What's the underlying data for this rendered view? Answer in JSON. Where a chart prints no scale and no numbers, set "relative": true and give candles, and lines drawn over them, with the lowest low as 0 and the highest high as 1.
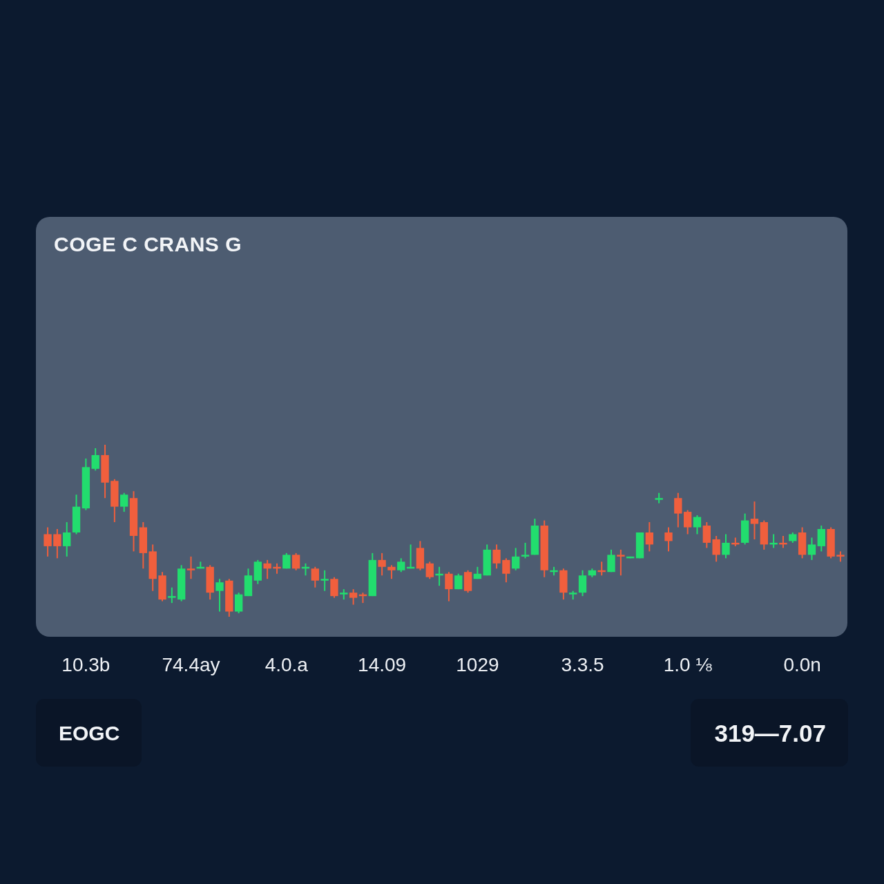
{
  "chart_data": {
    "type": "candlestick",
    "title": "COGE C CRANS G",
    "relative": true,
    "categories": [
      null,
      null,
      null,
      null,
      "10.3b",
      null,
      null,
      null,
      null,
      null,
      null,
      null,
      null,
      null,
      null,
      "74.4ay",
      null,
      null,
      null,
      null,
      null,
      null,
      null,
      null,
      null,
      "4.0.a",
      null,
      null,
      null,
      null,
      null,
      null,
      null,
      null,
      null,
      "14.09",
      null,
      null,
      null,
      null,
      null,
      null,
      null,
      null,
      null,
      "1029",
      null,
      null,
      null,
      null,
      null,
      null,
      null,
      null,
      null,
      null,
      "3.3.5",
      null,
      null,
      null,
      null,
      null,
      null,
      null,
      null,
      null,
      null,
      "1.0 ⅛",
      null,
      null,
      null,
      null,
      null,
      null,
      null,
      null,
      null,
      null,
      null,
      "0.0n",
      null,
      null,
      null,
      null
    ],
    "ohlc": [
      [
        0.48,
        0.52,
        0.35,
        0.41
      ],
      [
        0.48,
        0.51,
        0.34,
        0.41
      ],
      [
        0.41,
        0.55,
        0.35,
        0.49
      ],
      [
        0.49,
        0.71,
        0.48,
        0.64
      ],
      [
        0.63,
        0.92,
        0.62,
        0.87
      ],
      [
        0.86,
        0.98,
        0.85,
        0.94
      ],
      [
        0.94,
        1,
        0.69,
        0.78
      ],
      [
        0.79,
        0.8,
        0.55,
        0.64
      ],
      [
        0.64,
        0.72,
        0.61,
        0.71
      ],
      [
        0.69,
        0.73,
        0.38,
        0.47
      ],
      [
        0.52,
        0.55,
        0.28,
        0.37
      ],
      [
        0.38,
        0.42,
        0.15,
        0.22
      ],
      [
        0.24,
        0.26,
        0.09,
        0.1
      ],
      [
        0.11,
        0.17,
        0.08,
        0.12
      ],
      [
        0.1,
        0.3,
        0.09,
        0.28
      ],
      [
        0.28,
        0.35,
        0.22,
        0.27
      ],
      [
        0.28,
        0.32,
        0.28,
        0.29
      ],
      [
        0.29,
        0.3,
        0.1,
        0.14
      ],
      [
        0.15,
        0.22,
        0.03,
        0.2
      ],
      [
        0.21,
        0.22,
        0,
        0.03
      ],
      [
        0.03,
        0.14,
        0.02,
        0.13
      ],
      [
        0.12,
        0.28,
        0.12,
        0.24
      ],
      [
        0.21,
        0.33,
        0.19,
        0.32
      ],
      [
        0.31,
        0.33,
        0.22,
        0.28
      ],
      [
        0.29,
        0.31,
        0.25,
        0.28
      ],
      [
        0.28,
        0.37,
        0.28,
        0.36
      ],
      [
        0.36,
        0.37,
        0.27,
        0.28
      ],
      [
        0.28,
        0.31,
        0.24,
        0.29
      ],
      [
        0.28,
        0.29,
        0.17,
        0.21
      ],
      [
        0.21,
        0.27,
        0.15,
        0.22
      ],
      [
        0.22,
        0.23,
        0.11,
        0.12
      ],
      [
        0.13,
        0.16,
        0.1,
        0.14
      ],
      [
        0.14,
        0.16,
        0.07,
        0.11
      ],
      [
        0.13,
        0.14,
        0.08,
        0.12
      ],
      [
        0.12,
        0.37,
        0.12,
        0.33
      ],
      [
        0.33,
        0.37,
        0.24,
        0.29
      ],
      [
        0.29,
        0.3,
        0.22,
        0.27
      ],
      [
        0.27,
        0.34,
        0.26,
        0.32
      ],
      [
        0.28,
        0.42,
        0.28,
        0.29
      ],
      [
        0.4,
        0.44,
        0.27,
        0.28
      ],
      [
        0.31,
        0.32,
        0.22,
        0.23
      ],
      [
        0.24,
        0.29,
        0.18,
        0.25
      ],
      [
        0.25,
        0.26,
        0.09,
        0.16
      ],
      [
        0.16,
        0.25,
        0.16,
        0.24
      ],
      [
        0.26,
        0.27,
        0.14,
        0.15
      ],
      [
        0.22,
        0.29,
        0.22,
        0.25
      ],
      [
        0.24,
        0.42,
        0.24,
        0.39
      ],
      [
        0.39,
        0.42,
        0.28,
        0.31
      ],
      [
        0.33,
        0.34,
        0.2,
        0.25
      ],
      [
        0.28,
        0.4,
        0.27,
        0.35
      ],
      [
        0.35,
        0.43,
        0.34,
        0.36
      ],
      [
        0.36,
        0.57,
        0.36,
        0.53
      ],
      [
        0.53,
        0.56,
        0.23,
        0.27
      ],
      [
        0.26,
        0.29,
        0.24,
        0.27
      ],
      [
        0.27,
        0.28,
        0.1,
        0.14
      ],
      [
        0.13,
        0.15,
        0.1,
        0.14
      ],
      [
        0.14,
        0.27,
        0.12,
        0.24
      ],
      [
        0.24,
        0.28,
        0.23,
        0.27
      ],
      [
        0.27,
        0.32,
        0.24,
        0.26
      ],
      [
        0.26,
        0.39,
        0.26,
        0.36
      ],
      [
        0.36,
        0.39,
        0.24,
        0.35
      ],
      [
        0.34,
        0.35,
        0.34,
        0.35
      ],
      [
        0.34,
        0.49,
        0.34,
        0.49
      ],
      [
        0.49,
        0.55,
        0.38,
        0.42
      ],
      [
        0.68,
        0.72,
        0.66,
        0.69
      ],
      [
        0.49,
        0.52,
        0.38,
        0.44
      ],
      [
        0.69,
        0.72,
        0.52,
        0.6
      ],
      [
        0.61,
        0.62,
        0.48,
        0.52
      ],
      [
        0.52,
        0.59,
        0.48,
        0.58
      ],
      [
        0.53,
        0.55,
        0.4,
        0.43
      ],
      [
        0.45,
        0.47,
        0.32,
        0.36
      ],
      [
        0.36,
        0.48,
        0.34,
        0.43
      ],
      [
        0.43,
        0.46,
        0.41,
        0.42
      ],
      [
        0.43,
        0.6,
        0.42,
        0.56
      ],
      [
        0.57,
        0.67,
        0.45,
        0.54
      ],
      [
        0.55,
        0.56,
        0.39,
        0.42
      ],
      [
        0.42,
        0.48,
        0.4,
        0.43
      ],
      [
        0.43,
        0.47,
        0.4,
        0.42
      ],
      [
        0.44,
        0.49,
        0.43,
        0.48
      ],
      [
        0.49,
        0.52,
        0.34,
        0.36
      ],
      [
        0.36,
        0.46,
        0.33,
        0.42
      ],
      [
        0.41,
        0.53,
        0.38,
        0.51
      ],
      [
        0.51,
        0.52,
        0.34,
        0.35
      ],
      [
        0.36,
        0.38,
        0.32,
        0.35
      ]
    ],
    "colors": [
      "#f05f3d",
      "#f05f3d",
      "#22dd6e",
      "#22dd6e",
      "#22dd6e",
      "#22dd6e",
      "#f05f3d",
      "#f05f3d",
      "#22dd6e",
      "#f05f3d",
      "#f05f3d",
      "#f05f3d",
      "#f05f3d",
      "#22dd6e",
      "#22dd6e",
      "#f05f3d",
      "#22dd6e",
      "#f05f3d",
      "#22dd6e",
      "#f05f3d",
      "#22dd6e",
      "#22dd6e",
      "#22dd6e",
      "#f05f3d",
      "#f05f3d",
      "#22dd6e",
      "#f05f3d",
      "#22dd6e",
      "#f05f3d",
      "#22dd6e",
      "#f05f3d",
      "#22dd6e",
      "#f05f3d",
      "#f05f3d",
      "#22dd6e",
      "#f05f3d",
      "#f05f3d",
      "#22dd6e",
      "#22dd6e",
      "#f05f3d",
      "#f05f3d",
      "#22dd6e",
      "#f05f3d",
      "#22dd6e",
      "#f05f3d",
      "#22dd6e",
      "#22dd6e",
      "#f05f3d",
      "#f05f3d",
      "#22dd6e",
      "#22dd6e",
      "#22dd6e",
      "#f05f3d",
      "#22dd6e",
      "#f05f3d",
      "#22dd6e",
      "#22dd6e",
      "#22dd6e",
      "#f05f3d",
      "#22dd6e",
      "#f05f3d",
      "#22dd6e",
      "#22dd6e",
      "#f05f3d",
      "#22dd6e",
      "#f05f3d",
      "#f05f3d",
      "#f05f3d",
      "#22dd6e",
      "#f05f3d",
      "#f05f3d",
      "#22dd6e",
      "#f05f3d",
      "#22dd6e",
      "#f05f3d",
      "#f05f3d",
      "#22dd6e",
      "#f05f3d",
      "#22dd6e",
      "#f05f3d",
      "#22dd6e",
      "#22dd6e",
      "#f05f3d",
      "#f05f3d"
    ],
    "annotations": [
      "EOGC",
      "319—7.07"
    ]
  }
}
